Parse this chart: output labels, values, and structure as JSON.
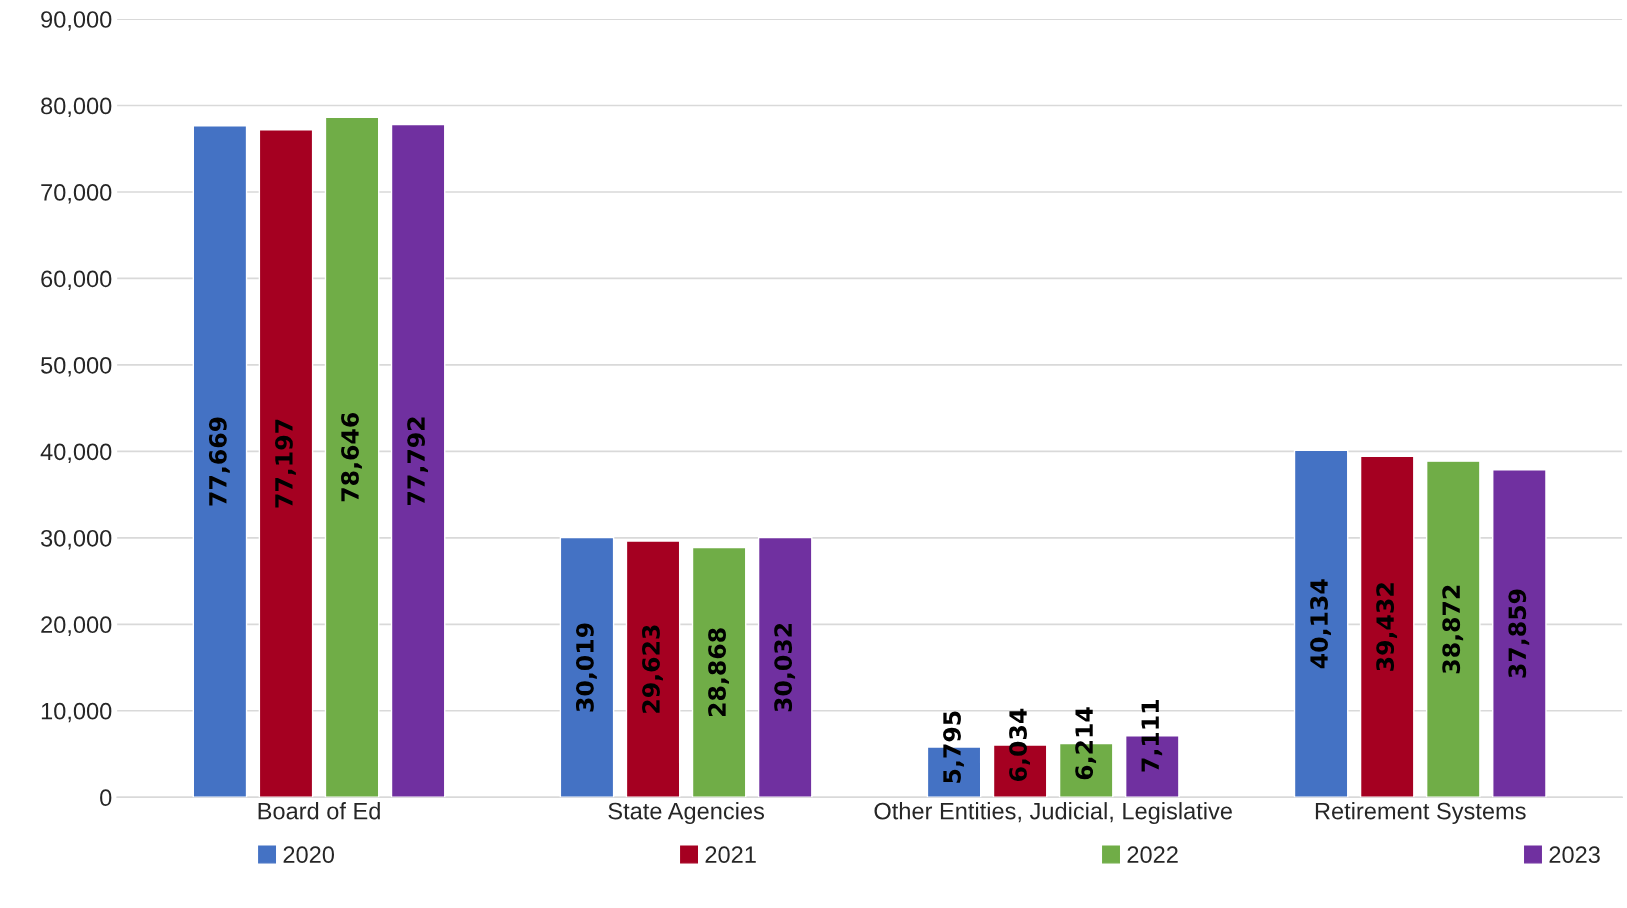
{
  "chart_data": {
    "type": "bar",
    "categories": [
      "Board of Ed",
      "State Agencies",
      "Other Entities, Judicial, Legislative",
      "Retirement Systems"
    ],
    "series": [
      {
        "name": "2020",
        "color": "#4472c4",
        "values": [
          77669,
          30019,
          5795,
          40134
        ],
        "value_labels": [
          "77,669",
          "30,019",
          "5,795",
          "40,134"
        ]
      },
      {
        "name": "2021",
        "color": "#a50021",
        "values": [
          77197,
          29623,
          6034,
          39432
        ],
        "value_labels": [
          "77,197",
          "29,623",
          "6,034",
          "39,432"
        ]
      },
      {
        "name": "2022",
        "color": "#70ad47",
        "values": [
          78646,
          28868,
          6214,
          38872
        ],
        "value_labels": [
          "78,646",
          "28,868",
          "6,214",
          "38,872"
        ]
      },
      {
        "name": "2023",
        "color": "#7030a0",
        "values": [
          77792,
          30032,
          7111,
          37859
        ],
        "value_labels": [
          "77,792",
          "30,032",
          "7,111",
          "37,859"
        ]
      }
    ],
    "ylim": [
      0,
      90000
    ],
    "yticks": [
      {
        "value": 0,
        "label": "0"
      },
      {
        "value": 10000,
        "label": "10,000"
      },
      {
        "value": 20000,
        "label": "20,000"
      },
      {
        "value": 30000,
        "label": "30,000"
      },
      {
        "value": 40000,
        "label": "40,000"
      },
      {
        "value": 50000,
        "label": "50,000"
      },
      {
        "value": 60000,
        "label": "60,000"
      },
      {
        "value": 70000,
        "label": "70,000"
      },
      {
        "value": 80000,
        "label": "80,000"
      },
      {
        "value": 90000,
        "label": "90,000"
      }
    ],
    "grid": "y",
    "legend": "bottom"
  }
}
